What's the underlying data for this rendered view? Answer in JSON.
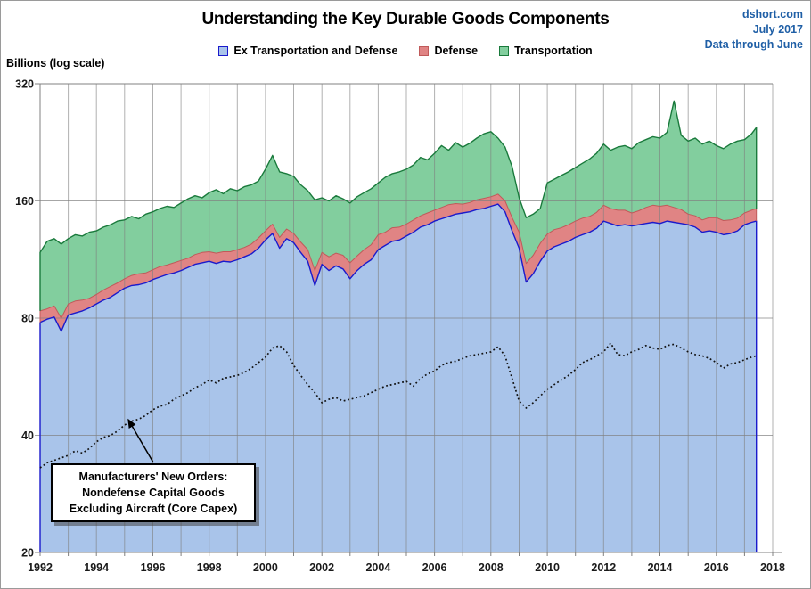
{
  "header": {
    "title": "Understanding the Key Durable Goods Components",
    "source": "dshort.com",
    "date": "July 2017",
    "data_note": "Data through June",
    "source_color": "#1F5FA6"
  },
  "axis_note": "Billions (log scale)",
  "legend": [
    {
      "label": "Ex Transportation and Defense",
      "fill": "#A9C4EA",
      "border": "#1A1ACC"
    },
    {
      "label": "Defense",
      "fill": "#E08484",
      "border": "#C05A5A"
    },
    {
      "label": "Transportation",
      "fill": "#82CE9E",
      "border": "#1A7A3C"
    }
  ],
  "annotation": {
    "lines": [
      "Manufacturers' New Orders:",
      "Nondefense Capital Goods",
      "Excluding Aircraft (Core Capex)"
    ]
  },
  "colors": {
    "grid": "#808080",
    "tick_text": "#1A1A1A",
    "capex_line": "#111111"
  },
  "chart_data": {
    "type": "area",
    "stacked": true,
    "y_scale": "log2",
    "title": "Understanding the Key Durable Goods Components",
    "ylabel": "Billions (log scale)",
    "y_ticks": [
      320,
      160,
      80,
      40,
      20
    ],
    "ylim": [
      20,
      320
    ],
    "x_ticks": [
      1992,
      1994,
      1996,
      1998,
      2000,
      2002,
      2004,
      2006,
      2008,
      2010,
      2012,
      2014,
      2016,
      2018
    ],
    "xlim": [
      1992,
      2018
    ],
    "grid": "on",
    "legend_position": "top-center",
    "x_start": 1992.0,
    "x_step": 0.25,
    "x_end": 2017.42,
    "series": [
      {
        "name": "Ex Transportation and Defense",
        "values": [
          78,
          79.5,
          80.5,
          74,
          81.5,
          82.5,
          83.5,
          85,
          87,
          89,
          90.5,
          93,
          95.5,
          97,
          97.5,
          98.5,
          100.5,
          102,
          103.5,
          104.5,
          106,
          108,
          110,
          111,
          112,
          110.5,
          112,
          111.5,
          113,
          115,
          117,
          121,
          127,
          132,
          121,
          128,
          125,
          118,
          112,
          97,
          110,
          106,
          109,
          107,
          101,
          106,
          110,
          113,
          120,
          123,
          126,
          127,
          130,
          133,
          137,
          139,
          142,
          144,
          146,
          148,
          149,
          150,
          152,
          153,
          155,
          157,
          150,
          134,
          121,
          99,
          104,
          112,
          119,
          122,
          124,
          126,
          129,
          131,
          133,
          136,
          142,
          140,
          138,
          139,
          138,
          139,
          140,
          141,
          140,
          142,
          141,
          140,
          139,
          137,
          133,
          134,
          133,
          131,
          132,
          134,
          139,
          141,
          142
        ]
      },
      {
        "name": "Defense",
        "values": [
          5.5,
          5,
          5.5,
          6,
          5.5,
          6,
          5.5,
          5,
          5,
          5.5,
          6,
          5.5,
          5.5,
          6,
          6.5,
          6,
          6,
          6.5,
          6,
          6.5,
          6.5,
          6,
          6.5,
          7,
          6.5,
          7,
          6.5,
          7,
          7,
          6.5,
          7,
          7.5,
          7,
          7.5,
          8,
          7.5,
          7,
          7.5,
          8,
          9,
          8,
          9,
          8.5,
          9,
          10,
          9.5,
          10,
          10.5,
          11,
          10,
          10.5,
          10,
          9.5,
          10,
          9.5,
          10,
          9.5,
          10,
          10.5,
          9.5,
          8,
          8.5,
          9,
          9.5,
          9,
          9.5,
          10,
          11,
          12,
          11.5,
          12,
          12.5,
          12.5,
          13,
          12.5,
          13,
          13,
          13.5,
          13,
          13.5,
          14,
          13,
          13.5,
          12.5,
          11,
          12,
          14,
          15,
          15,
          14,
          13,
          12,
          9,
          9.5,
          10,
          11,
          12,
          11.5,
          11,
          10.5,
          10,
          10.5,
          11
        ]
      },
      {
        "name": "Transportation",
        "values": [
          34.5,
          41.5,
          42,
          44,
          41,
          42.5,
          41,
          43,
          42,
          42.5,
          42.5,
          43.5,
          42,
          43,
          40,
          43.5,
          43.5,
          44.5,
          45.5,
          43,
          45.5,
          48,
          48.5,
          45,
          49.5,
          53.5,
          48.5,
          53.5,
          50,
          52.5,
          52,
          51.5,
          59,
          70,
          61,
          52.5,
          53,
          50.5,
          50,
          55,
          45,
          45,
          47.5,
          46,
          47,
          48.5,
          48,
          48.5,
          47,
          51,
          51.5,
          53,
          53.5,
          55,
          60.5,
          55,
          60.5,
          68,
          59.5,
          68.5,
          63,
          66.5,
          71,
          75.5,
          77,
          65.5,
          60,
          51,
          30,
          34.5,
          32,
          28.5,
          46.5,
          47,
          49.5,
          51,
          53,
          55.5,
          59,
          62.5,
          68,
          63,
          68.5,
          70.5,
          69,
          75,
          76,
          78,
          77,
          84,
          135,
          84,
          80,
          85.5,
          81,
          83,
          77,
          75.5,
          81,
          83.5,
          81,
          86.5,
          94
        ]
      }
    ],
    "line_series": {
      "name": "Manufacturers' New Orders: Nondefense Capital Goods Excluding Aircraft (Core Capex)",
      "style": "dotted",
      "values": [
        33,
        34,
        34.5,
        35,
        35.5,
        36.5,
        36,
        37,
        38.5,
        39.5,
        40,
        41,
        42.5,
        43.5,
        44,
        45,
        46.5,
        47.5,
        48,
        49.5,
        50.5,
        51.5,
        53,
        54,
        55.5,
        54.5,
        56,
        56.5,
        57,
        58,
        59.5,
        61.5,
        63.5,
        67,
        68,
        65.5,
        60.5,
        57,
        54,
        51.5,
        48.5,
        49.5,
        50,
        49,
        49.5,
        50,
        50.5,
        51.5,
        52.5,
        53.5,
        54,
        54.5,
        55,
        53.5,
        56,
        57.5,
        58.5,
        60.5,
        61.5,
        62,
        63,
        64,
        64.5,
        65,
        65.5,
        67.5,
        64,
        56,
        49,
        47,
        48.5,
        50.5,
        52.5,
        54,
        55.5,
        57,
        59,
        61.5,
        62.5,
        64,
        65.5,
        69,
        64.5,
        64,
        65.5,
        66.5,
        68,
        67,
        66.5,
        68,
        68.5,
        67,
        65.5,
        64.5,
        64,
        63,
        61.5,
        59.5,
        61,
        61.5,
        62.5,
        63.5,
        64
      ]
    }
  }
}
